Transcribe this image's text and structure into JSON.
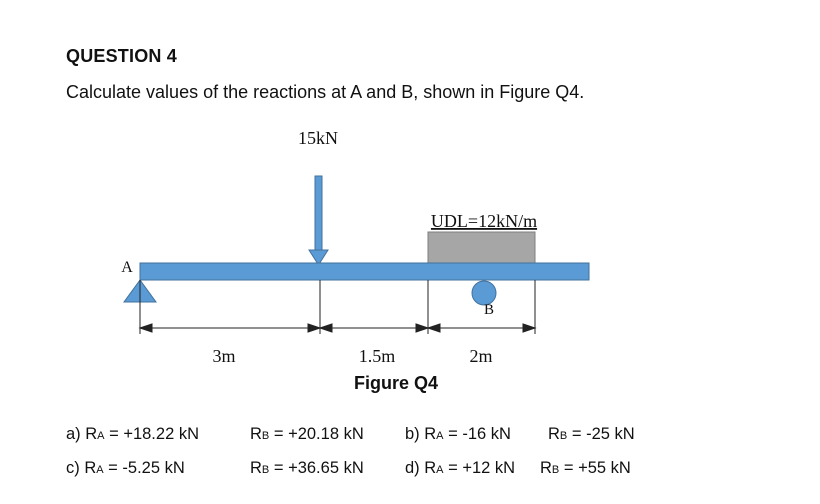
{
  "question": {
    "title": "QUESTION 4",
    "text": "Calculate values of the reactions at A and B, shown in Figure Q4."
  },
  "figure": {
    "point_load_label": "15kN",
    "udl_label": "UDL=12kN/m",
    "support_a_label": "A",
    "support_b_label": "B",
    "dim_1": "3m",
    "dim_2": "1.5m",
    "dim_3": "2m",
    "caption": "Figure Q4",
    "colors": {
      "beam": "#5b9bd5",
      "beam_edge": "#41719c",
      "udl": "#a6a6a6"
    }
  },
  "answers": {
    "a": {
      "prefix": "a) R",
      "ra_sub": "A",
      "ra_val": " = +18.22 kN",
      "rb": "R",
      "rb_sub": "B",
      "rb_val": " = +20.18 kN"
    },
    "b": {
      "prefix": "b) R",
      "ra_sub": "A",
      "ra_val": " = -16 kN",
      "rb": "R",
      "rb_sub": "B",
      "rb_val": " = -25 kN"
    },
    "c": {
      "prefix": "c) R",
      "ra_sub": "A",
      "ra_val": " = -5.25 kN",
      "rb": "R",
      "rb_sub": "B",
      "rb_val": " = +36.65 kN"
    },
    "d": {
      "prefix": "d) R",
      "ra_sub": "A",
      "ra_val": " = +12 kN",
      "rb": "R",
      "rb_sub": "B",
      "rb_val": " = +55 kN"
    }
  }
}
